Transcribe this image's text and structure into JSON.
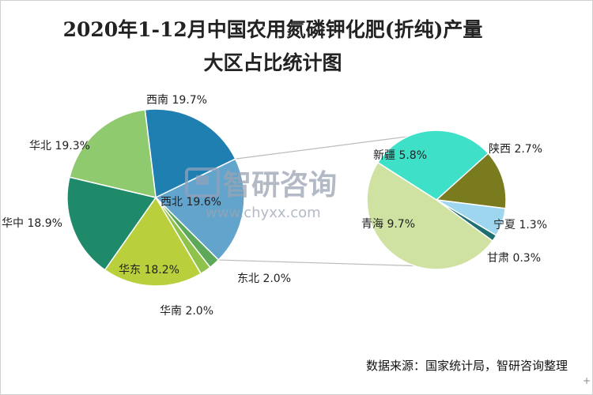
{
  "chart_data": {
    "type": "pie",
    "title_lines": [
      "2020年1-12月中国农用氮磷钾化肥(折纯)产量",
      "大区占比统计图"
    ],
    "main_slices": [
      {
        "name": "西南",
        "value": 19.7,
        "label": "西南 19.7%",
        "color": "#1f7fb0"
      },
      {
        "name": "西北",
        "value": 19.6,
        "label": "西北 19.6%",
        "color": "#62a4cc"
      },
      {
        "name": "东北",
        "value": 2.0,
        "label": "东北 2.0%",
        "color": "#5ea85a"
      },
      {
        "name": "华南",
        "value": 2.0,
        "label": "华南 2.0%",
        "color": "#8fc24a"
      },
      {
        "name": "华东",
        "value": 18.2,
        "label": "华东 18.2%",
        "color": "#b9cf3c"
      },
      {
        "name": "华中",
        "value": 18.9,
        "label": "华中 18.9%",
        "color": "#1e8a6a"
      },
      {
        "name": "华北",
        "value": 19.3,
        "label": "华北 19.3%",
        "color": "#8fca6e"
      }
    ],
    "detail_slices": [
      {
        "name": "陕西",
        "value": 2.7,
        "label": "陕西 2.7%",
        "color": "#7a7a1e"
      },
      {
        "name": "宁夏",
        "value": 1.3,
        "label": "宁夏 1.3%",
        "color": "#9fd6ef"
      },
      {
        "name": "甘肃",
        "value": 0.3,
        "label": "甘肃 0.3%",
        "color": "#1f6f72"
      },
      {
        "name": "青海",
        "value": 9.7,
        "label": "青海 9.7%",
        "color": "#cfe2a2"
      },
      {
        "name": "新疆",
        "value": 5.8,
        "label": "新疆 5.8%",
        "color": "#3fe0c8"
      }
    ],
    "detail_of": "西北",
    "source": "数据来源：国家统计局，智研咨询整理"
  },
  "watermark": {
    "brand": "智研咨询",
    "url": "www.chyxx.com"
  }
}
